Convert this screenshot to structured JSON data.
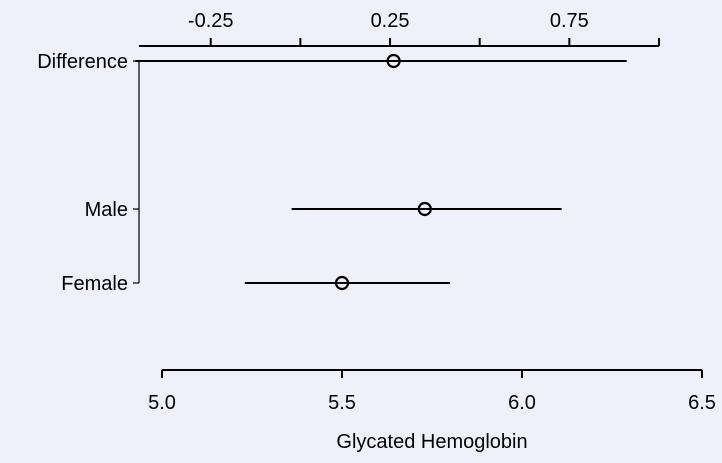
{
  "chart_data": {
    "type": "scatter",
    "subtype": "forest-plot-with-error-bars",
    "xlabel": "Glycated Hemoglobin",
    "bottom_axis": {
      "range": [
        5.0,
        6.5
      ],
      "ticks": [
        5.0,
        5.5,
        6.0,
        6.5
      ],
      "tick_labels": [
        "5.0",
        "5.5",
        "6.0",
        "6.5"
      ]
    },
    "top_axis": {
      "label": "",
      "range": [
        -0.45,
        1.0
      ],
      "ticks": [
        -0.25,
        0.0,
        0.25,
        0.5,
        0.75,
        1.0
      ],
      "labeled_ticks": [
        -0.25,
        0.25,
        0.75
      ],
      "tick_labels": [
        "-0.25",
        "0.25",
        "0.75"
      ]
    },
    "categories": [
      "Difference",
      "Male",
      "Female"
    ],
    "points": [
      {
        "label": "Difference",
        "axis": "top",
        "estimate": 0.26,
        "lower": -0.46,
        "upper": 0.91
      },
      {
        "label": "Male",
        "axis": "bottom",
        "estimate": 5.73,
        "lower": 5.36,
        "upper": 6.11
      },
      {
        "label": "Female",
        "axis": "bottom",
        "estimate": 5.5,
        "lower": 5.23,
        "upper": 5.8
      }
    ],
    "grid": false,
    "legend": "none",
    "colors": {
      "background": "#f0f0fa",
      "ink": "#000000"
    }
  }
}
